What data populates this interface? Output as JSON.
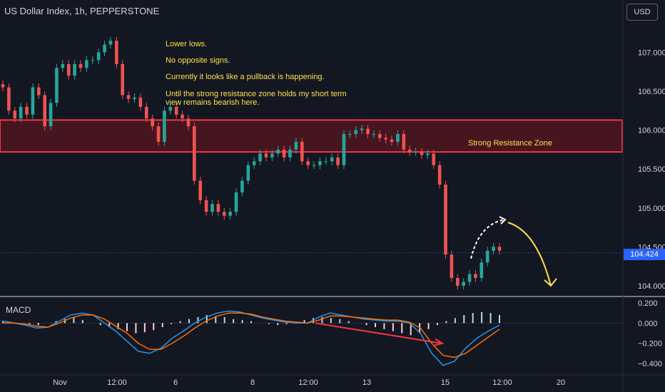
{
  "header": {
    "title": "US Dollar Index, 1h, PEPPERSTONE"
  },
  "toolbar": {
    "currency_label": "USD"
  },
  "notes": {
    "line1": "Lower lows.",
    "line2": "No opposite signs.",
    "line3": "Currently it looks like a pullback is happening.",
    "line4": "Until the strong resistance zone holds my short term view remains bearish here."
  },
  "zone": {
    "label": "Strong Resistance Zone",
    "low": 105.72,
    "high": 106.13
  },
  "current_price": {
    "label": "104.424",
    "value": 104.424
  },
  "macd": {
    "label": "MACD"
  },
  "colors": {
    "up": "#26a69a",
    "down": "#ef5350",
    "zone": "#f23645",
    "annotation": "#fde047",
    "macd": "#2196f3",
    "signal": "#ff6d00",
    "price_tag": "#2962ff"
  },
  "chart_data": [
    {
      "type": "candlestick",
      "y_axis": {
        "ticks": [
          "107.000",
          "106.500",
          "106.000",
          "105.500",
          "105.000",
          "104.500",
          "104.000"
        ],
        "range": [
          103.88,
          107.38
        ]
      },
      "x_axis": {
        "ticks": [
          "Nov",
          "12:00",
          "6",
          "8",
          "12:00",
          "13",
          "15",
          "12:00",
          "20"
        ]
      },
      "close_series": [
        106.55,
        106.25,
        106.15,
        106.3,
        106.2,
        106.55,
        106.45,
        106.05,
        106.35,
        106.8,
        106.85,
        106.7,
        106.85,
        106.8,
        106.9,
        106.9,
        107.0,
        107.1,
        107.15,
        106.85,
        106.45,
        106.4,
        106.42,
        106.3,
        106.15,
        106.05,
        105.85,
        106.25,
        106.3,
        106.2,
        106.15,
        106.05,
        105.35,
        105.1,
        104.95,
        105.05,
        104.95,
        104.9,
        104.95,
        105.2,
        105.35,
        105.55,
        105.6,
        105.7,
        105.65,
        105.7,
        105.75,
        105.65,
        105.75,
        105.85,
        105.6,
        105.55,
        105.55,
        105.6,
        105.6,
        105.65,
        105.55,
        105.95,
        105.95,
        106.0,
        106.02,
        105.95,
        105.95,
        105.9,
        105.88,
        105.85,
        105.95,
        105.75,
        105.72,
        105.72,
        105.68,
        105.7,
        105.55,
        105.3,
        104.4,
        104.1,
        104.0,
        104.05,
        104.15,
        104.1,
        104.3,
        104.45,
        104.5,
        104.45
      ],
      "annotations": [
        "Strong Resistance Zone",
        "dashed projection up to 104.85 then arrow down to 104.0"
      ]
    },
    {
      "type": "histogram",
      "name": "MACD",
      "y_axis": {
        "ticks": [
          "0.200",
          "0.000",
          "−0.200",
          "−0.400"
        ],
        "range": [
          -0.5,
          0.25
        ]
      },
      "histogram": [
        0.02,
        0.01,
        0.0,
        -0.01,
        -0.02,
        0.0,
        0.02,
        0.04,
        0.06,
        0.03,
        0.0,
        -0.02,
        -0.04,
        -0.06,
        -0.08,
        -0.1,
        -0.09,
        -0.07,
        -0.04,
        -0.01,
        0.02,
        0.04,
        0.06,
        0.08,
        0.07,
        0.06,
        0.04,
        0.03,
        0.02,
        0.0,
        -0.01,
        -0.02,
        -0.01,
        0.01,
        0.03,
        0.05,
        0.06,
        0.05,
        0.04,
        0.02,
        0.0,
        -0.02,
        -0.04,
        -0.06,
        -0.08,
        -0.1,
        -0.12,
        -0.1,
        -0.06,
        -0.02,
        0.02,
        0.05,
        0.08,
        0.1,
        0.11,
        0.1,
        0.08
      ],
      "macd_line": [
        0.02,
        0.0,
        -0.02,
        -0.05,
        -0.04,
        0.02,
        0.08,
        0.1,
        0.08,
        0.0,
        -0.08,
        -0.18,
        -0.28,
        -0.3,
        -0.25,
        -0.15,
        -0.08,
        0.0,
        0.06,
        0.1,
        0.12,
        0.11,
        0.08,
        0.05,
        0.03,
        0.01,
        0.0,
        0.0,
        0.06,
        0.1,
        0.08,
        0.06,
        0.04,
        0.03,
        0.02,
        0.02,
        0.0,
        -0.1,
        -0.3,
        -0.42,
        -0.38,
        -0.25,
        -0.15,
        -0.08,
        -0.02
      ],
      "signal_line": [
        0.0,
        0.0,
        -0.01,
        -0.03,
        -0.04,
        0.0,
        0.05,
        0.08,
        0.08,
        0.04,
        -0.03,
        -0.1,
        -0.2,
        -0.26,
        -0.26,
        -0.2,
        -0.13,
        -0.05,
        0.02,
        0.07,
        0.1,
        0.1,
        0.09,
        0.06,
        0.04,
        0.02,
        0.01,
        0.0,
        0.03,
        0.07,
        0.07,
        0.06,
        0.05,
        0.04,
        0.03,
        0.03,
        0.01,
        -0.05,
        -0.2,
        -0.32,
        -0.34,
        -0.3,
        -0.22,
        -0.14,
        -0.06
      ],
      "annotations": [
        "divergence line drawn from 0.0 to -0.2"
      ]
    }
  ]
}
